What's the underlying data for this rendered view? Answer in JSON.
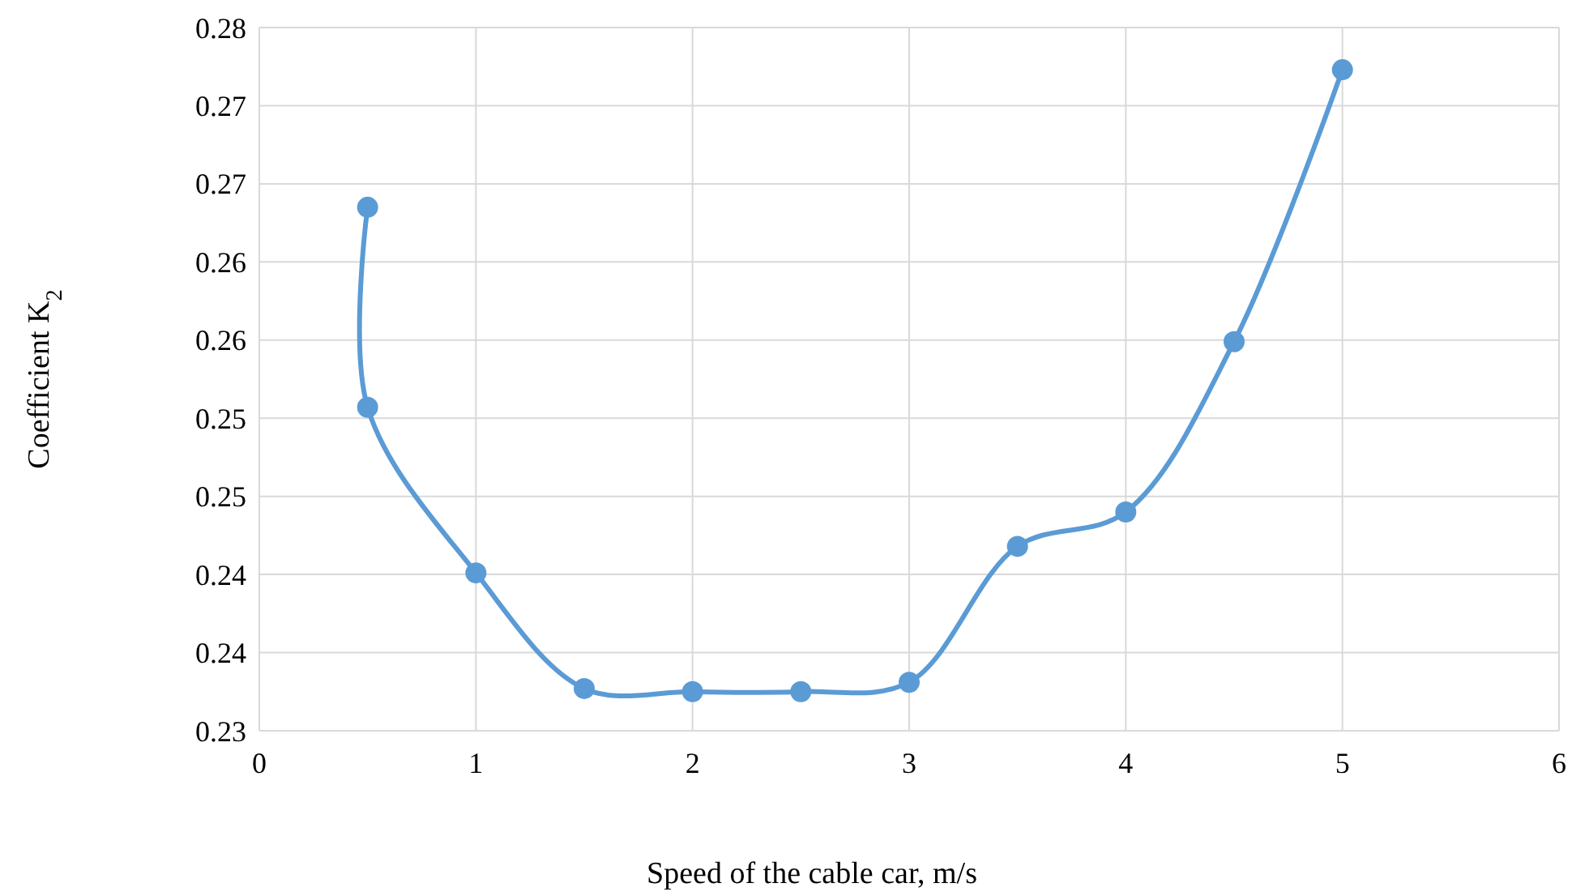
{
  "chart_data": {
    "type": "line",
    "xlabel": "Speed of the cable car, m/s",
    "ylabel": "Coefficient K$_{2}$",
    "x": [
      0.5,
      0.5,
      1,
      1.5,
      2,
      2.5,
      3,
      3.5,
      4,
      4.5,
      5
    ],
    "series": [
      {
        "color": "#5b9bd5",
        "values": [
          0.2635,
          0.2507,
          0.2401,
          0.2327,
          0.2325,
          0.2325,
          0.2331,
          0.2418,
          0.244,
          0.2549,
          0.2723
        ]
      }
    ],
    "xlim": [
      0,
      6
    ],
    "xticks": [
      0,
      1,
      2,
      3,
      4,
      5,
      6
    ],
    "ylim": [
      0.23,
      0.275
    ],
    "yticks": [
      {
        "value": 0.23,
        "label": "0.23"
      },
      {
        "value": 0.235,
        "label": "0.24"
      },
      {
        "value": 0.24,
        "label": "0.24"
      },
      {
        "value": 0.245,
        "label": "0.25"
      },
      {
        "value": 0.25,
        "label": "0.25"
      },
      {
        "value": 0.255,
        "label": "0.26"
      },
      {
        "value": 0.26,
        "label": "0.26"
      },
      {
        "value": 0.265,
        "label": "0.27"
      },
      {
        "value": 0.27,
        "label": "0.27"
      },
      {
        "value": 0.275,
        "label": "0.28"
      }
    ],
    "grid": true,
    "marker": "circle",
    "line_style": "solid"
  }
}
